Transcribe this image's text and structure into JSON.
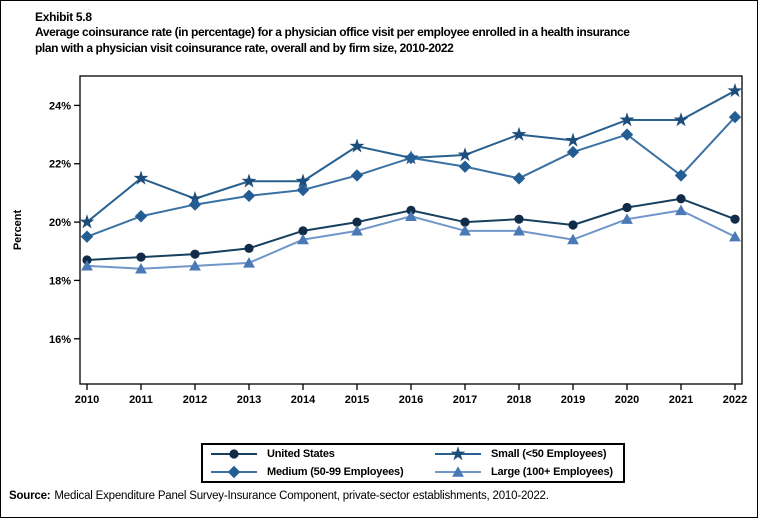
{
  "header": {
    "exhibit": "Exhibit 5.8",
    "title_lines": [
      "Average coinsurance rate (in percentage) for a physician office visit per employee enrolled in a health insurance",
      "plan with a physician visit coinsurance rate, overall and by firm size, 2010-2022"
    ]
  },
  "source": {
    "label": "Source:",
    "text": "Medical Expenditure Panel Survey-Insurance Component, private-sector establishments, 2010-2022."
  },
  "chart_data": {
    "type": "line",
    "title": "Average coinsurance rate (in percentage) for a physician office visit per employee enrolled in a health insurance plan with a physician visit coinsurance rate, overall and by firm size, 2010-2022",
    "xlabel": "",
    "ylabel": "Percent",
    "x": [
      2010,
      2011,
      2012,
      2013,
      2014,
      2015,
      2016,
      2017,
      2018,
      2019,
      2020,
      2021,
      2022
    ],
    "yticks": [
      16,
      18,
      20,
      22,
      24
    ],
    "yticklabels": [
      "16%",
      "18%",
      "20%",
      "22%",
      "24%"
    ],
    "ylim": [
      14.4,
      25.0
    ],
    "grid": false,
    "legend_position": "bottom-center",
    "series": [
      {
        "name": "United States",
        "marker": "circle",
        "line_color": "#17405f",
        "marker_color": "#102c49",
        "values": [
          18.7,
          18.8,
          18.9,
          19.1,
          19.7,
          20.0,
          20.4,
          20.0,
          20.1,
          19.9,
          20.5,
          20.8,
          20.1
        ]
      },
      {
        "name": "Small (<50 Employees)",
        "marker": "star",
        "line_color": "#28618f",
        "marker_color": "#1d4d7a",
        "values": [
          20.0,
          21.5,
          20.8,
          21.4,
          21.4,
          22.6,
          22.2,
          22.3,
          23.0,
          22.8,
          23.5,
          23.5,
          24.5
        ]
      },
      {
        "name": "Medium (50-99 Employees)",
        "marker": "diamond",
        "line_color": "#3a72a4",
        "marker_color": "#235d94",
        "values": [
          19.5,
          20.2,
          20.6,
          20.9,
          21.1,
          21.6,
          22.2,
          21.9,
          21.5,
          22.4,
          23.0,
          21.6,
          23.6
        ]
      },
      {
        "name": "Large (100+ Employees)",
        "marker": "triangle",
        "line_color": "#7097c8",
        "marker_color": "#4a79b5",
        "values": [
          18.5,
          18.4,
          18.5,
          18.6,
          19.4,
          19.7,
          20.2,
          19.7,
          19.7,
          19.4,
          20.1,
          20.4,
          19.5
        ]
      }
    ]
  }
}
